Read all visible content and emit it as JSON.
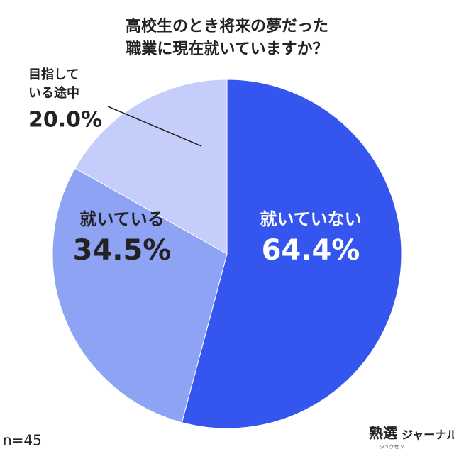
{
  "chart_data": {
    "type": "pie",
    "title": "高校生のとき将来の夢だった\n職業に現在就いていますか？",
    "categories": [
      "就いていない",
      "就いている",
      "目指して\nいる途中"
    ],
    "values": [
      64.4,
      34.5,
      20.0
    ],
    "value_labels": [
      "64.4%",
      "34.5%",
      "20.0%"
    ],
    "colors": [
      "#3456ee",
      "#8fa3f5",
      "#c5cefb"
    ],
    "note": "n=45",
    "logo": "熟選",
    "logo_sub": "ジュクセン",
    "logo_text": "ジャーナル"
  }
}
